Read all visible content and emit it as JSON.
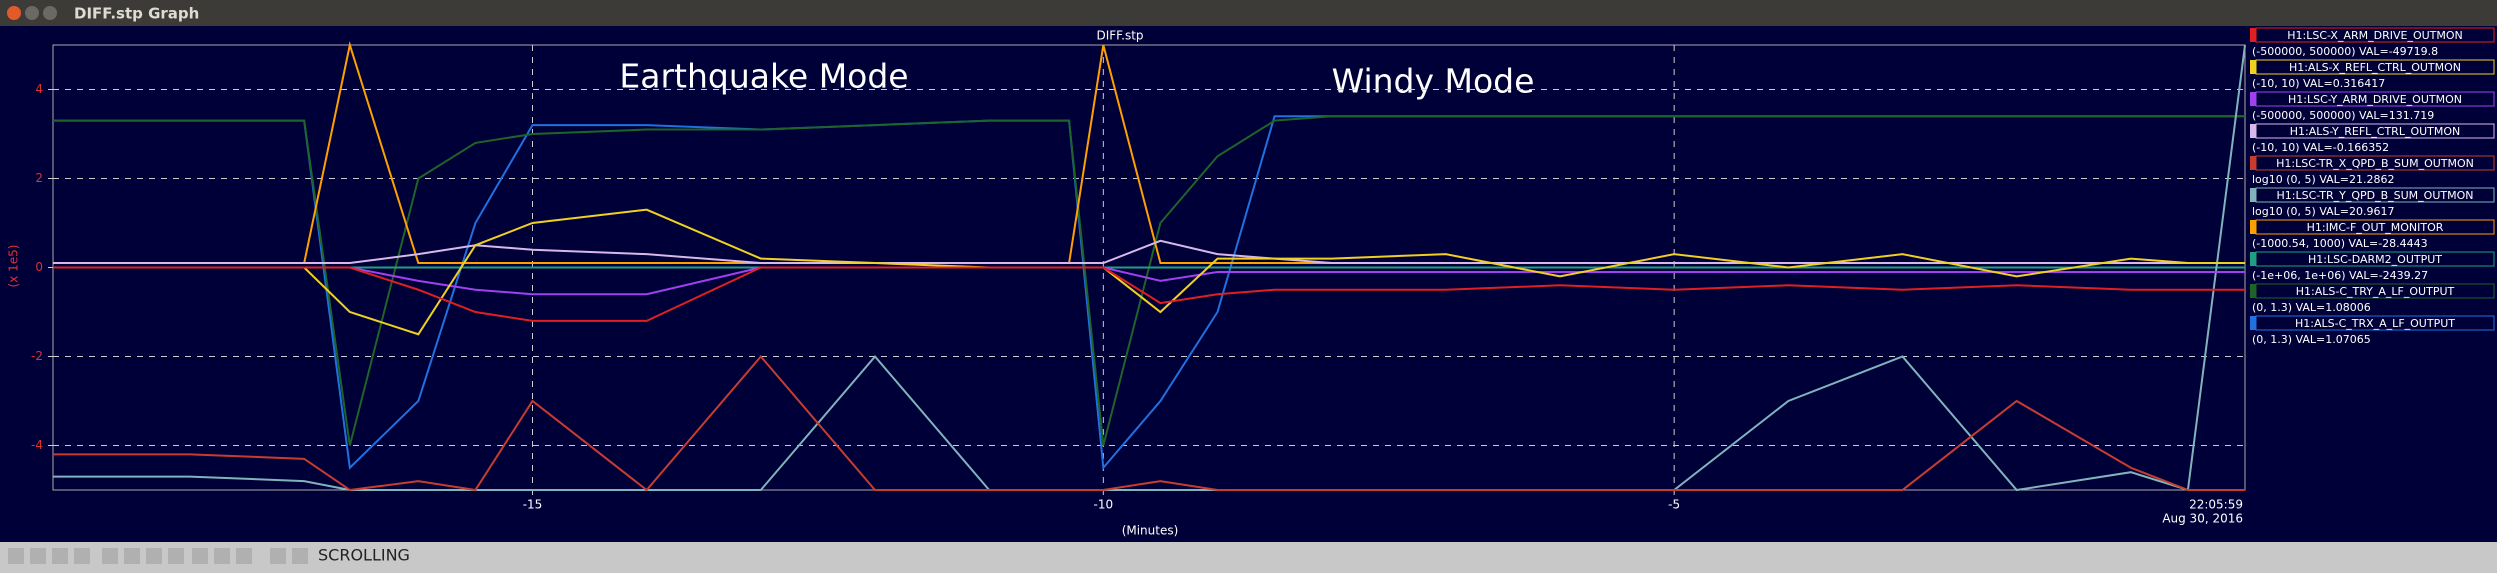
{
  "window": {
    "title": "DIFF.stp Graph"
  },
  "toolbar": {
    "status": "SCROLLING"
  },
  "chart_data": {
    "type": "line",
    "title": "DIFF.stp",
    "x_label": "(Minutes)",
    "y_label": "(x 1e5)",
    "time_label": "22:05:59",
    "date_label": "Aug 30, 2016",
    "annotations": [
      "Earthquake Mode",
      "Windy Mode"
    ],
    "grid": true,
    "xlim": [
      -19.2,
      0
    ],
    "xticks": [
      -15,
      -10,
      -5
    ],
    "ylim": [
      -5,
      5
    ],
    "yticks": [
      4,
      2,
      0,
      -2,
      -4
    ],
    "x": [
      -19.2,
      -18,
      -17,
      -16.6,
      -16,
      -15.5,
      -15,
      -14,
      -13,
      -12,
      -11,
      -10.3,
      -10,
      -9.5,
      -9,
      -8.5,
      -8,
      -7,
      -6,
      -5,
      -4,
      -3,
      -2,
      -1,
      -0.5,
      0
    ],
    "series": [
      {
        "name": "H1:LSC-X_ARM_DRIVE_OUTMON",
        "range_label": "(-500000, 500000) VAL=-49719.8",
        "color": "#e02020",
        "values": [
          0,
          0,
          0,
          0,
          -0.5,
          -1,
          -1.2,
          -1.2,
          0,
          0,
          0,
          0,
          0,
          -0.8,
          -0.6,
          -0.5,
          -0.5,
          -0.5,
          -0.4,
          -0.5,
          -0.4,
          -0.5,
          -0.4,
          -0.5,
          -0.5,
          -0.5
        ]
      },
      {
        "name": "H1:ALS-X_REFL_CTRL_OUTMON",
        "range_label": "(-10, 10) VAL=0.316417",
        "color": "#f0d020",
        "values": [
          0,
          0,
          0,
          -1,
          -1.5,
          0.5,
          1,
          1.3,
          0.2,
          0.1,
          0,
          0,
          0,
          -1,
          0.2,
          0.2,
          0.2,
          0.3,
          -0.2,
          0.3,
          0,
          0.3,
          -0.2,
          0.2,
          0.1,
          0.1
        ]
      },
      {
        "name": "H1:LSC-Y_ARM_DRIVE_OUTMON",
        "range_label": "(-500000, 500000) VAL=131.719",
        "color": "#a040f0",
        "values": [
          0,
          0,
          0,
          0,
          -0.3,
          -0.5,
          -0.6,
          -0.6,
          0,
          0,
          0,
          0,
          0,
          -0.3,
          -0.1,
          -0.1,
          -0.1,
          -0.1,
          -0.1,
          -0.1,
          -0.1,
          -0.1,
          -0.1,
          -0.1,
          -0.1,
          -0.1
        ]
      },
      {
        "name": "H1:ALS-Y_REFL_CTRL_OUTMON",
        "range_label": "(-10, 10) VAL=-0.166352",
        "color": "#d8b8e8",
        "values": [
          0.1,
          0.1,
          0.1,
          0.1,
          0.3,
          0.5,
          0.4,
          0.3,
          0.1,
          0.1,
          0.1,
          0.1,
          0.1,
          0.6,
          0.3,
          0.2,
          0.1,
          0.1,
          0.1,
          0.1,
          0.1,
          0.1,
          0.1,
          0.1,
          0.1,
          0.1
        ]
      },
      {
        "name": "H1:LSC-TR_X_QPD_B_SUM_OUTMON",
        "range_label": "log10 (0, 5) VAL=21.2862",
        "color": "#c83c30",
        "values": [
          -4.2,
          -4.2,
          -4.3,
          -5,
          -4.8,
          -5,
          -3,
          -5,
          -2,
          -5,
          -5,
          -5,
          -5,
          -4.8,
          -5,
          -5,
          -5,
          -5,
          -5,
          -5,
          -5,
          -5,
          -3,
          -4.5,
          -5,
          -5
        ]
      },
      {
        "name": "H1:LSC-TR_Y_QPD_B_SUM_OUTMON",
        "range_label": "log10 (0, 5) VAL=20.9617",
        "color": "#80b4bc",
        "values": [
          -4.7,
          -4.7,
          -4.8,
          -5,
          -5,
          -5,
          -5,
          -5,
          -5,
          -2,
          -5,
          -5,
          -5,
          -5,
          -5,
          -5,
          -5,
          -5,
          -5,
          -5,
          -3,
          -2,
          -5,
          -4.6,
          -5,
          5
        ]
      },
      {
        "name": "H1:IMC-F_OUT_MONITOR",
        "range_label": "(-1000.54, 1000) VAL=-28.4443",
        "color": "#ffa000",
        "values": [
          0.1,
          0.1,
          0.1,
          5,
          0.1,
          0.1,
          0.1,
          0.1,
          0.1,
          0.1,
          0.1,
          0.1,
          5,
          0.1,
          0.1,
          0.1,
          0.1,
          0.1,
          0.1,
          0.1,
          0.1,
          0.1,
          0.1,
          0.1,
          0.1,
          0.1
        ]
      },
      {
        "name": "H1:LSC-DARM2_OUTPUT",
        "range_label": "(-1e+06, 1e+06) VAL=-2439.27",
        "color": "#20a080",
        "values": [
          0,
          0,
          0,
          0,
          0,
          0,
          0,
          0,
          0,
          0,
          0,
          0,
          0,
          0,
          0,
          0,
          0,
          0,
          0,
          0,
          0,
          0,
          0,
          0,
          0,
          0
        ]
      },
      {
        "name": "H1:ALS-C_TRY_A_LF_OUTPUT",
        "range_label": "(0, 1.3) VAL=1.08006",
        "color": "#1e6428",
        "values": [
          3.3,
          3.3,
          3.3,
          -4,
          2,
          2.8,
          3,
          3.1,
          3.1,
          3.2,
          3.3,
          3.3,
          -4,
          1,
          2.5,
          3.3,
          3.4,
          3.4,
          3.4,
          3.4,
          3.4,
          3.4,
          3.4,
          3.4,
          3.4,
          3.4
        ]
      },
      {
        "name": "H1:ALS-C_TRX_A_LF_OUTPUT",
        "range_label": "(0, 1.3) VAL=1.07065",
        "color": "#2070e0",
        "values": [
          3.3,
          3.3,
          3.3,
          -4.5,
          -3,
          1,
          3.2,
          3.2,
          3.1,
          3.2,
          3.3,
          3.3,
          -4.5,
          -3,
          -1,
          3.4,
          3.4,
          3.4,
          3.4,
          3.4,
          3.4,
          3.4,
          3.4,
          3.4,
          3.4,
          3.4
        ]
      }
    ]
  }
}
